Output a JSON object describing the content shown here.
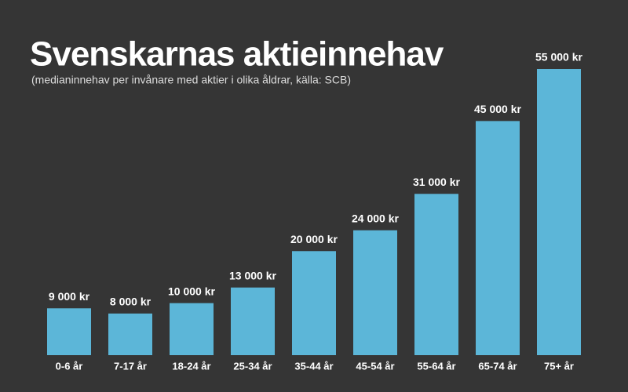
{
  "chart_data": {
    "type": "bar",
    "title": "Svenskarnas aktieinnehav",
    "subtitle": "(medianinnehav per invånare med aktier i olika åldrar, källa: SCB)",
    "categories": [
      "0-6 år",
      "7-17 år",
      "18-24 år",
      "25-34 år",
      "35-44 år",
      "45-54 år",
      "55-64 år",
      "65-74 år",
      "75+ år"
    ],
    "values": [
      9000,
      8000,
      10000,
      13000,
      20000,
      24000,
      31000,
      45000,
      55000
    ],
    "value_labels": [
      "9 000 kr",
      "8 000 kr",
      "10 000 kr",
      "13 000 kr",
      "20 000 kr",
      "24 000 kr",
      "31 000 kr",
      "45 000 kr",
      "55 000 kr"
    ],
    "color": "#5cb6d8"
  }
}
